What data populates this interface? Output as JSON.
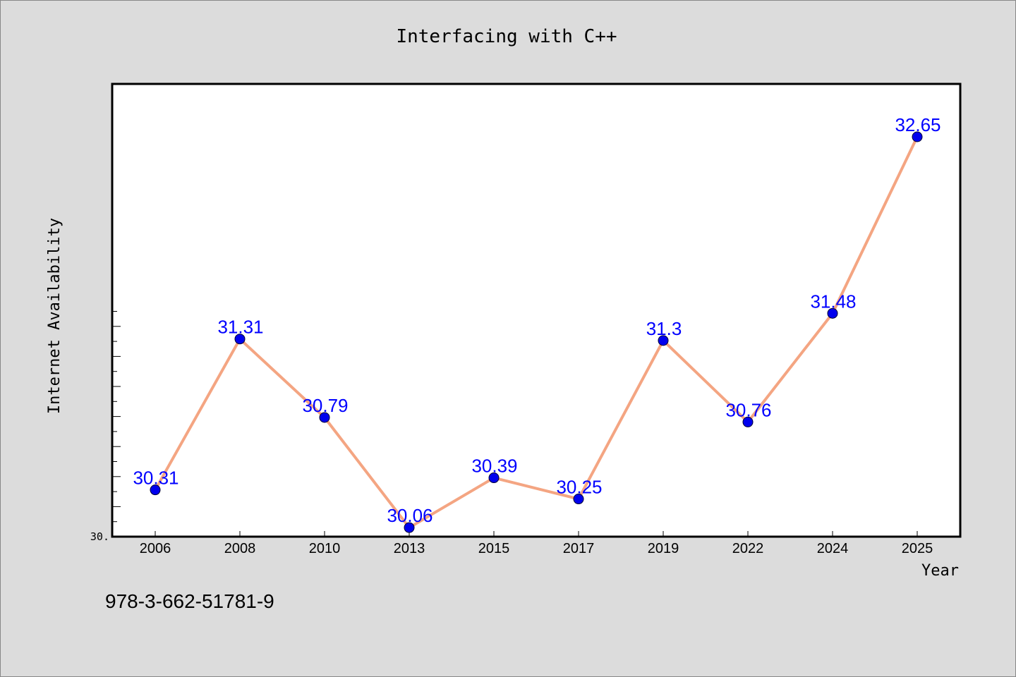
{
  "chart_data": {
    "type": "line",
    "title": "Interfacing with C++",
    "xlabel": "Year",
    "ylabel": "Internet Availability",
    "categories": [
      "2006",
      "2008",
      "2010",
      "2013",
      "2015",
      "2017",
      "2019",
      "2022",
      "2024",
      "2025"
    ],
    "series": [
      {
        "values": [
          30.31,
          31.31,
          30.79,
          30.06,
          30.39,
          30.25,
          31.3,
          30.76,
          31.48,
          32.65
        ],
        "data_labels": [
          "30.31",
          "31.31",
          "30.79",
          "30.06",
          "30.39",
          "30.25",
          "31.3",
          "30.76",
          "31.48",
          "32.65"
        ]
      }
    ],
    "ylim": [
      30.0,
      33.0
    ],
    "y_tick_labels": [
      "30."
    ],
    "grid": false,
    "legend": "none",
    "colors": {
      "line": "#f4a582",
      "marker": "#0000ee",
      "data_label": "#0000ff",
      "background": "#dcdcdc",
      "plot_bg": "#ffffff"
    }
  },
  "footer": {
    "isbn": "978-3-662-51781-9"
  }
}
